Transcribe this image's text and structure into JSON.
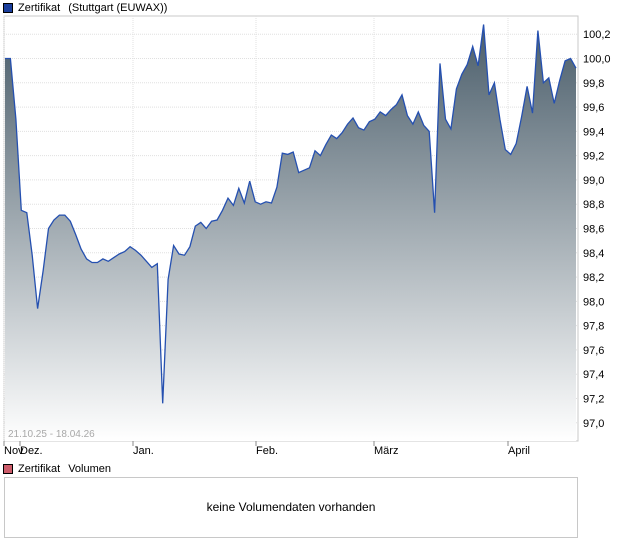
{
  "legend_top": {
    "series_label": "Zertifikat",
    "exchange_label": "(Stuttgart (EUWAX))",
    "series_color": "#1a3e9c"
  },
  "legend_bottom": {
    "series_label": "Zertifikat",
    "volume_label": "Volumen",
    "series_color": "#cc5c6a"
  },
  "volume_panel": {
    "message": "keine Volumendaten vorhanden"
  },
  "chart_data": {
    "type": "area",
    "date_range_label": "21.10.25 - 18.04.26",
    "x_tick_labels": [
      "Nov",
      "Dez.",
      "Jan.",
      "Feb.",
      "März",
      "April"
    ],
    "y_tick_labels": [
      "97,0",
      "97,2",
      "97,4",
      "97,6",
      "97,8",
      "98,0",
      "98,2",
      "98,4",
      "98,6",
      "98,8",
      "99,0",
      "99,2",
      "99,4",
      "99,6",
      "99,8",
      "100,0",
      "100,2"
    ],
    "ylim": [
      96.85,
      100.35
    ],
    "grid": true,
    "line_color": "#2550b0",
    "fill_top_color": "#4a5d6a",
    "fill_bottom_color": "#ffffff",
    "series": [
      {
        "values": [
          100.0,
          100.0,
          99.5,
          98.75,
          98.73,
          98.38,
          97.94,
          98.25,
          98.6,
          98.67,
          98.71,
          98.71,
          98.66,
          98.55,
          98.43,
          98.35,
          98.32,
          98.32,
          98.35,
          98.33,
          98.36,
          98.39,
          98.41,
          98.45,
          98.42,
          98.38,
          98.33,
          98.28,
          98.31,
          97.16,
          98.18,
          98.46,
          98.39,
          98.38,
          98.45,
          98.62,
          98.65,
          98.6,
          98.66,
          98.67,
          98.75,
          98.85,
          98.79,
          98.93,
          98.81,
          98.99,
          98.82,
          98.8,
          98.82,
          98.81,
          98.94,
          99.22,
          99.21,
          99.23,
          99.06,
          99.08,
          99.1,
          99.24,
          99.2,
          99.29,
          99.37,
          99.34,
          99.39,
          99.46,
          99.51,
          99.43,
          99.41,
          99.48,
          99.5,
          99.56,
          99.53,
          99.58,
          99.62,
          99.7,
          99.53,
          99.46,
          99.56,
          99.45,
          99.4,
          98.73,
          99.96,
          99.5,
          99.42,
          99.75,
          99.87,
          99.95,
          100.1,
          99.94,
          100.28,
          99.7,
          99.8,
          99.5,
          99.25,
          99.21,
          99.3,
          99.52,
          99.77,
          99.55,
          100.23,
          99.8,
          99.84,
          99.63,
          99.82,
          99.98,
          100.0,
          99.92
        ]
      }
    ]
  }
}
